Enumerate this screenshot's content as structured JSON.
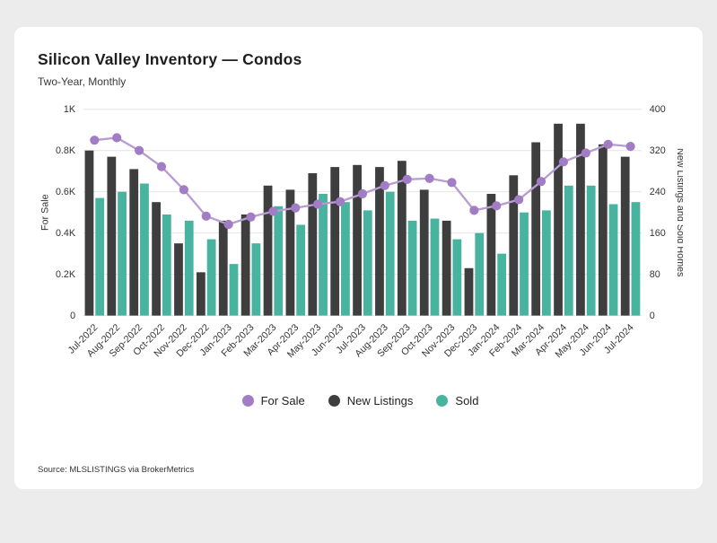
{
  "header": {
    "title": "Silicon Valley Inventory — Condos",
    "subtitle": "Two-Year, Monthly"
  },
  "footer": {
    "source": "Source:  MLSLISTINGS via BrokerMetrics"
  },
  "legend": {
    "items": [
      {
        "label": "For Sale",
        "color": "#a27cc4"
      },
      {
        "label": "New Listings",
        "color": "#3e3e3e"
      },
      {
        "label": "Sold",
        "color": "#48b39f"
      }
    ]
  },
  "chart_data": {
    "type": "bar",
    "title": "Silicon Valley Inventory — Condos",
    "subtitle": "Two-Year, Monthly",
    "categories": [
      "Jul-2022",
      "Aug-2022",
      "Sep-2022",
      "Oct-2022",
      "Nov-2022",
      "Dec-2022",
      "Jan-2023",
      "Feb-2023",
      "Mar-2023",
      "Apr-2023",
      "May-2023",
      "Jun-2023",
      "Jul-2023",
      "Aug-2023",
      "Sep-2023",
      "Oct-2023",
      "Nov-2023",
      "Dec-2023",
      "Jan-2024",
      "Feb-2024",
      "Mar-2024",
      "Apr-2024",
      "May-2024",
      "Jun-2024",
      "Jul-2024"
    ],
    "series": [
      {
        "name": "New Listings",
        "type": "bar",
        "axis": "right",
        "color": "#3e3e3e",
        "values": [
          320,
          308,
          284,
          220,
          140,
          84,
          184,
          196,
          252,
          244,
          276,
          288,
          292,
          288,
          300,
          244,
          184,
          92,
          236,
          272,
          336,
          372,
          372,
          332,
          308
        ]
      },
      {
        "name": "Sold",
        "type": "bar",
        "axis": "right",
        "color": "#48b39f",
        "values": [
          228,
          240,
          256,
          196,
          184,
          148,
          100,
          140,
          212,
          176,
          236,
          220,
          204,
          240,
          184,
          188,
          148,
          160,
          120,
          200,
          204,
          252,
          252,
          216,
          220
        ]
      },
      {
        "name": "For Sale",
        "type": "line",
        "axis": "left",
        "color": "#a27cc4",
        "line_color": "#b79dd2",
        "values": [
          850,
          862,
          800,
          722,
          610,
          482,
          442,
          478,
          505,
          522,
          540,
          552,
          590,
          630,
          660,
          665,
          645,
          510,
          532,
          562,
          650,
          745,
          788,
          830,
          820
        ]
      }
    ],
    "ylabel_left": "For Sale",
    "ylabel_right": "New Listings and Sold Homes",
    "ylim_left": [
      0,
      1000
    ],
    "ylim_right": [
      0,
      400
    ],
    "yticks_left": [
      "0",
      "0.2K",
      "0.4K",
      "0.6K",
      "0.8K",
      "1K"
    ],
    "yticks_right": [
      "0",
      "80",
      "160",
      "240",
      "320",
      "400"
    ],
    "grid": true,
    "legend_position": "bottom"
  }
}
